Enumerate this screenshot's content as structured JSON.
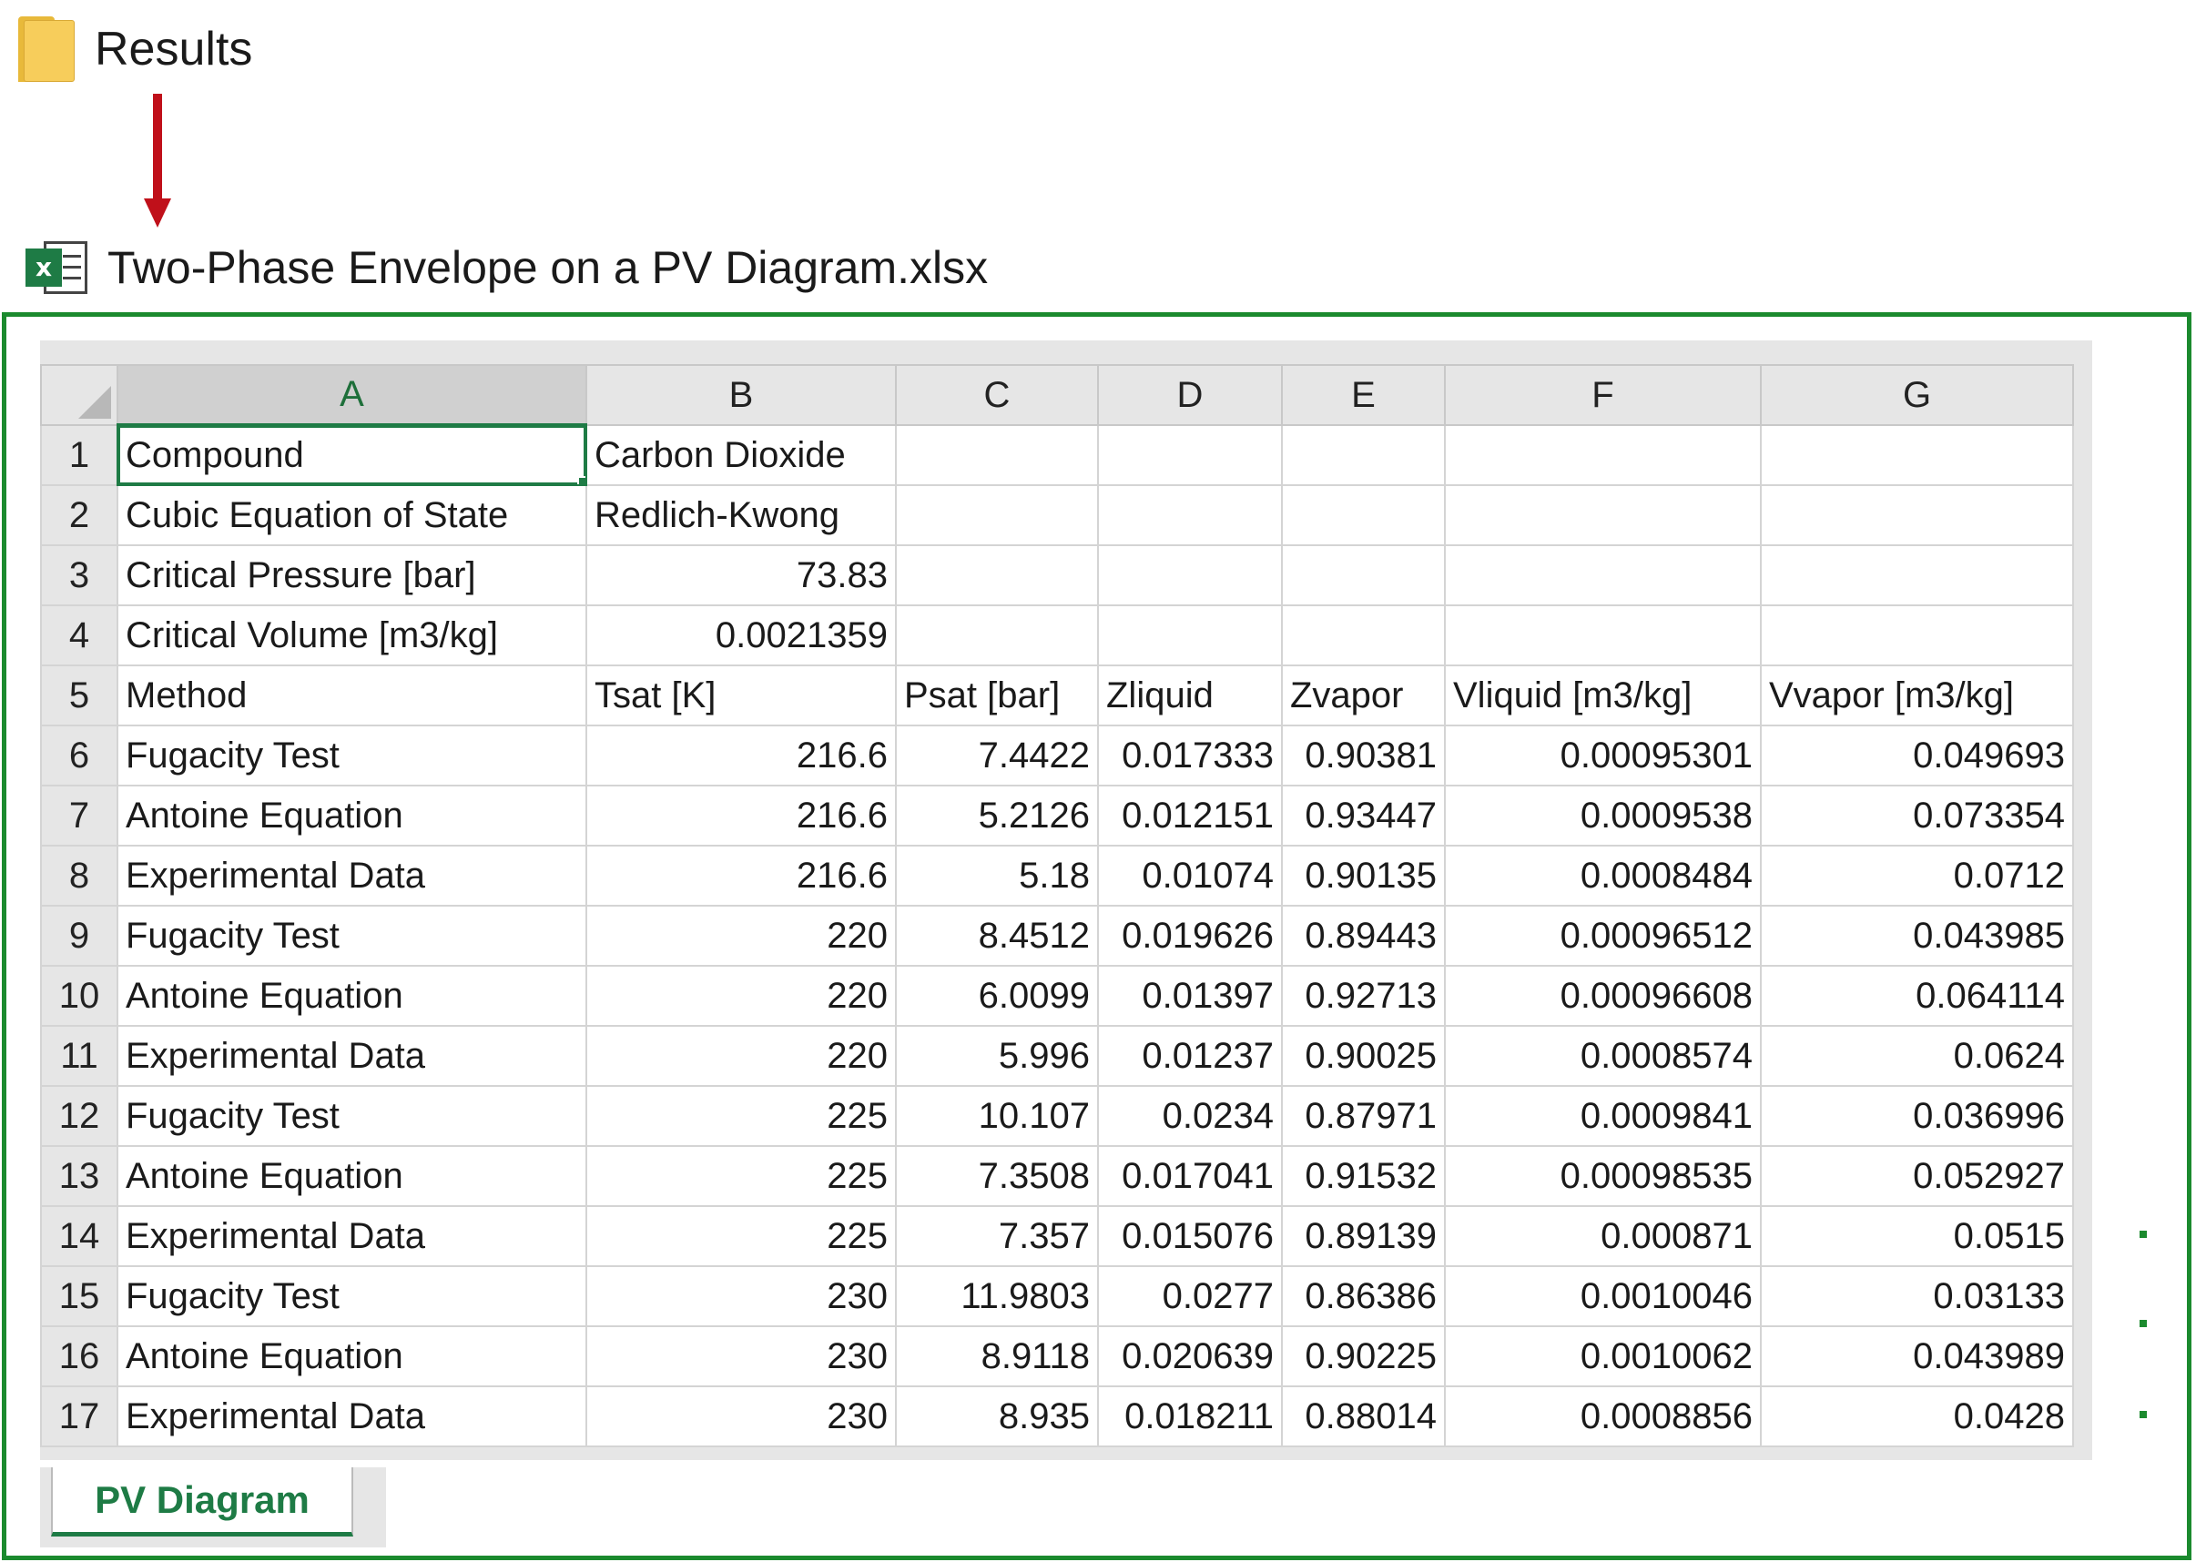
{
  "folder": {
    "label": "Results",
    "icon": "folder-icon"
  },
  "file": {
    "label": "Two-Phase Envelope on a PV Diagram.xlsx",
    "icon": "excel-file-icon",
    "badge": "x"
  },
  "colors": {
    "frame": "#1b8a2e",
    "arrow": "#c0101a",
    "excel_green": "#1e7b45"
  },
  "spreadsheet": {
    "columns": [
      "A",
      "B",
      "C",
      "D",
      "E",
      "F",
      "G"
    ],
    "selected_cell": "A1",
    "rows": [
      {
        "n": "1",
        "cells": [
          "Compound",
          "Carbon Dioxide",
          "",
          "",
          "",
          "",
          ""
        ]
      },
      {
        "n": "2",
        "cells": [
          "Cubic Equation of State",
          "Redlich-Kwong",
          "",
          "",
          "",
          "",
          ""
        ]
      },
      {
        "n": "3",
        "cells": [
          "Critical Pressure [bar]",
          "73.83",
          "",
          "",
          "",
          "",
          ""
        ]
      },
      {
        "n": "4",
        "cells": [
          "Critical Volume [m3/kg]",
          "0.0021359",
          "",
          "",
          "",
          "",
          ""
        ]
      },
      {
        "n": "5",
        "cells": [
          "Method",
          "Tsat [K]",
          "Psat [bar]",
          "Zliquid",
          "Zvapor",
          "Vliquid [m3/kg]",
          "Vvapor [m3/kg]"
        ]
      },
      {
        "n": "6",
        "cells": [
          "Fugacity Test",
          "216.6",
          "7.4422",
          "0.017333",
          "0.90381",
          "0.00095301",
          "0.049693"
        ]
      },
      {
        "n": "7",
        "cells": [
          "Antoine Equation",
          "216.6",
          "5.2126",
          "0.012151",
          "0.93447",
          "0.0009538",
          "0.073354"
        ]
      },
      {
        "n": "8",
        "cells": [
          "Experimental Data",
          "216.6",
          "5.18",
          "0.01074",
          "0.90135",
          "0.0008484",
          "0.0712"
        ]
      },
      {
        "n": "9",
        "cells": [
          "Fugacity Test",
          "220",
          "8.4512",
          "0.019626",
          "0.89443",
          "0.00096512",
          "0.043985"
        ]
      },
      {
        "n": "10",
        "cells": [
          "Antoine Equation",
          "220",
          "6.0099",
          "0.01397",
          "0.92713",
          "0.00096608",
          "0.064114"
        ]
      },
      {
        "n": "11",
        "cells": [
          "Experimental Data",
          "220",
          "5.996",
          "0.01237",
          "0.90025",
          "0.0008574",
          "0.0624"
        ]
      },
      {
        "n": "12",
        "cells": [
          "Fugacity Test",
          "225",
          "10.107",
          "0.0234",
          "0.87971",
          "0.0009841",
          "0.036996"
        ]
      },
      {
        "n": "13",
        "cells": [
          "Antoine Equation",
          "225",
          "7.3508",
          "0.017041",
          "0.91532",
          "0.00098535",
          "0.052927"
        ]
      },
      {
        "n": "14",
        "cells": [
          "Experimental Data",
          "225",
          "7.357",
          "0.015076",
          "0.89139",
          "0.000871",
          "0.0515"
        ]
      },
      {
        "n": "15",
        "cells": [
          "Fugacity Test",
          "230",
          "11.9803",
          "0.0277",
          "0.86386",
          "0.0010046",
          "0.03133"
        ]
      },
      {
        "n": "16",
        "cells": [
          "Antoine Equation",
          "230",
          "8.9118",
          "0.020639",
          "0.90225",
          "0.0010062",
          "0.043989"
        ]
      },
      {
        "n": "17",
        "cells": [
          "Experimental Data",
          "230",
          "8.935",
          "0.018211",
          "0.88014",
          "0.0008856",
          "0.0428"
        ]
      }
    ]
  },
  "sheet_tabs": [
    {
      "label": "PV Diagram",
      "active": true
    }
  ]
}
